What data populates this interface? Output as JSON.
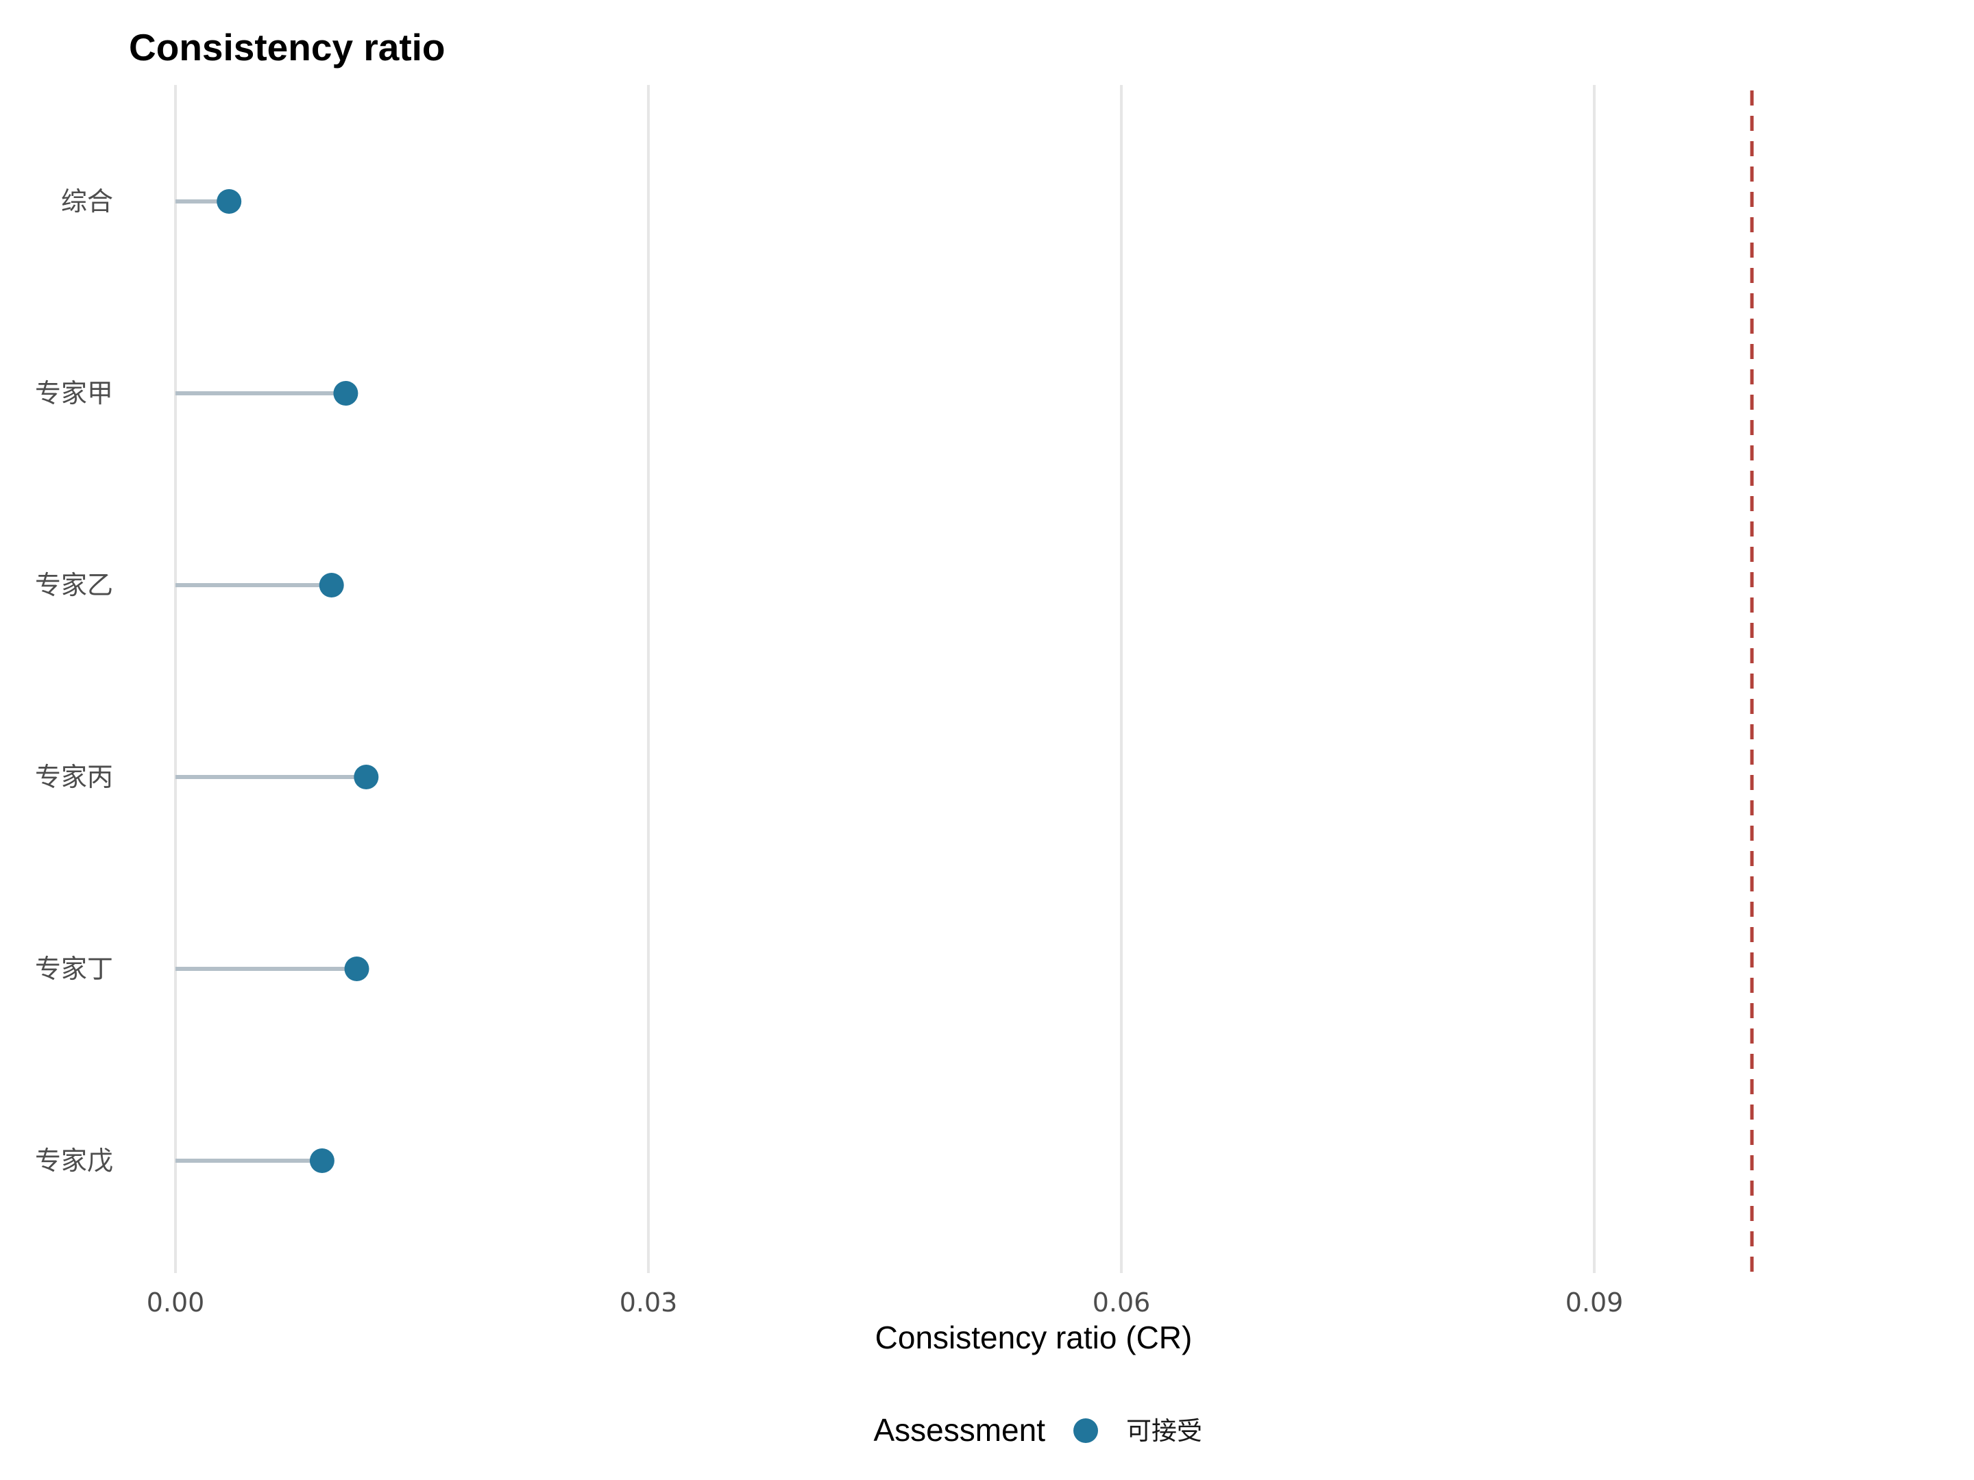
{
  "chart_data": {
    "type": "lollipop",
    "title": "Consistency ratio",
    "xlabel": "Consistency ratio (CR)",
    "ylabel": "",
    "categories": [
      "综合",
      "专家甲",
      "专家乙",
      "专家丙",
      "专家丁",
      "专家戊"
    ],
    "values": [
      0.0034,
      0.0108,
      0.0099,
      0.0121,
      0.0115,
      0.0093
    ],
    "xlim": [
      0,
      0.1
    ],
    "x_ticks": [
      0.0,
      0.03,
      0.06,
      0.09
    ],
    "x_tick_labels": [
      "0.00",
      "0.03",
      "0.06",
      "0.09"
    ],
    "threshold": 0.1,
    "legend": {
      "title": "Assessment",
      "placement": "bottom",
      "entries": [
        {
          "label": "可接受",
          "color": "#21759b"
        }
      ]
    },
    "grid": {
      "vertical_major": true,
      "horizontal": false
    },
    "colors": {
      "point": "#21759b",
      "stem": "#b3bfc8",
      "threshold_line": "#b2413a",
      "grid": "#e6e6e6"
    }
  }
}
